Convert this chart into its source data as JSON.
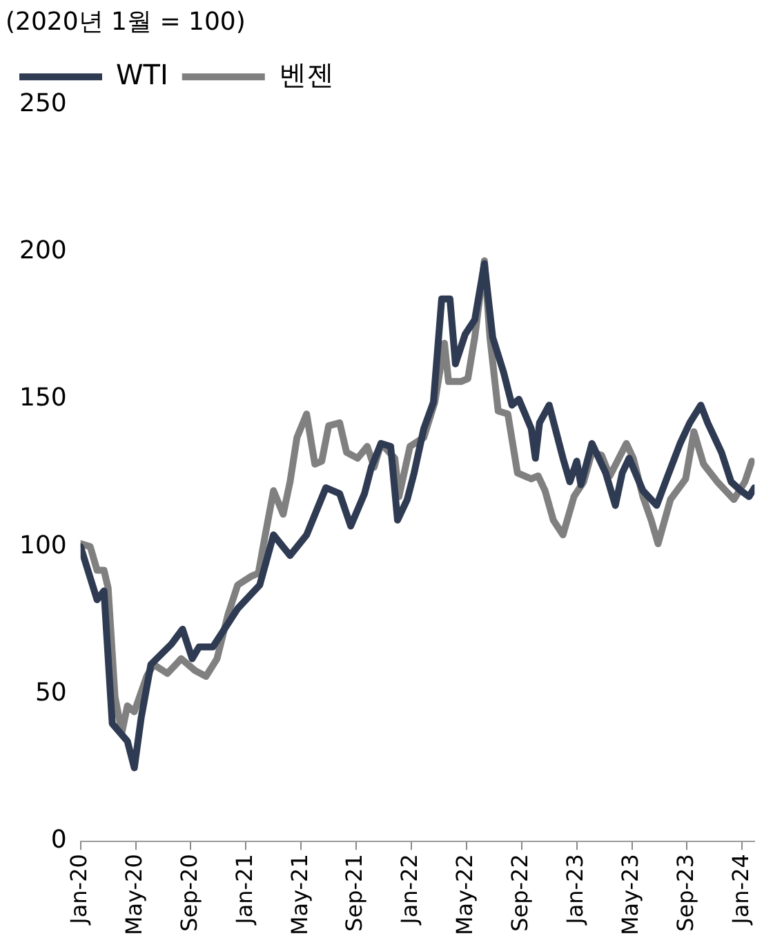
{
  "chart_data": {
    "type": "line",
    "title": "(2020년 1월 = 100)",
    "legend": "top left",
    "grid": false,
    "marker": "none",
    "line_style": "solid",
    "xlim": [
      "2020-01-01",
      "2024-01-28"
    ],
    "xticks": [
      {
        "value": "2020-01-01",
        "label": "Jan-20"
      },
      {
        "value": "2020-05-01",
        "label": "May-20"
      },
      {
        "value": "2020-09-01",
        "label": "Sep-20"
      },
      {
        "value": "2021-01-01",
        "label": "Jan-21"
      },
      {
        "value": "2021-05-01",
        "label": "May-21"
      },
      {
        "value": "2021-09-01",
        "label": "Sep-21"
      },
      {
        "value": "2022-01-01",
        "label": "Jan-22"
      },
      {
        "value": "2022-05-01",
        "label": "May-22"
      },
      {
        "value": "2022-09-01",
        "label": "Sep-22"
      },
      {
        "value": "2023-01-01",
        "label": "Jan-23"
      },
      {
        "value": "2023-05-01",
        "label": "May-23"
      },
      {
        "value": "2023-09-01",
        "label": "Sep-23"
      },
      {
        "value": "2024-01-01",
        "label": "Jan-24"
      }
    ],
    "ylim": [
      0,
      250
    ],
    "yticks": [
      0,
      50,
      100,
      150,
      200,
      250
    ],
    "series": [
      {
        "name": "WTI",
        "color": "#2f3b52",
        "x": [
          "2020-01-01",
          "2020-02-07",
          "2020-02-22",
          "2020-03-10",
          "2020-04-13",
          "2020-04-28",
          "2020-05-13",
          "2020-06-04",
          "2020-07-19",
          "2020-08-13",
          "2020-09-04",
          "2020-09-19",
          "2020-10-19",
          "2020-12-13",
          "2021-01-13",
          "2021-02-01",
          "2021-03-01",
          "2021-04-07",
          "2021-05-13",
          "2021-06-25",
          "2021-07-25",
          "2021-08-19",
          "2021-09-19",
          "2021-10-04",
          "2021-10-25",
          "2021-11-16",
          "2021-12-01",
          "2021-12-22",
          "2022-01-07",
          "2022-01-28",
          "2022-02-19",
          "2022-03-07",
          "2022-03-25",
          "2022-04-07",
          "2022-04-28",
          "2022-05-19",
          "2022-06-10",
          "2022-06-28",
          "2022-07-22",
          "2022-08-10",
          "2022-08-25",
          "2022-09-22",
          "2022-10-01",
          "2022-10-10",
          "2022-11-01",
          "2022-12-01",
          "2022-12-16",
          "2023-01-01",
          "2023-01-10",
          "2023-02-04",
          "2023-03-04",
          "2023-03-25",
          "2023-04-10",
          "2023-04-25",
          "2023-05-25",
          "2023-06-25",
          "2023-07-19",
          "2023-08-16",
          "2023-09-07",
          "2023-10-01",
          "2023-10-16",
          "2023-11-16",
          "2023-12-07",
          "2023-12-28",
          "2024-01-16",
          "2024-01-28"
        ],
        "values": [
          100,
          82,
          85,
          40,
          34,
          25,
          42,
          60,
          67,
          72,
          62,
          66,
          66,
          79,
          84,
          87,
          104,
          97,
          104,
          120,
          118,
          107,
          118,
          127,
          135,
          134,
          109,
          116,
          125,
          140,
          149,
          184,
          184,
          162,
          172,
          177,
          196,
          171,
          159,
          148,
          150,
          140,
          130,
          142,
          148,
          130,
          122,
          129,
          121,
          135,
          125,
          114,
          125,
          130,
          119,
          114,
          124,
          135,
          142,
          148,
          142,
          132,
          122,
          119,
          117,
          120
        ]
      },
      {
        "name": "벤젠",
        "color": "#808080",
        "x": [
          "2020-01-01",
          "2020-01-22",
          "2020-02-07",
          "2020-02-22",
          "2020-03-01",
          "2020-03-16",
          "2020-04-01",
          "2020-04-13",
          "2020-04-28",
          "2020-05-25",
          "2020-06-10",
          "2020-07-10",
          "2020-08-10",
          "2020-09-10",
          "2020-10-04",
          "2020-10-28",
          "2020-11-22",
          "2020-12-13",
          "2021-01-13",
          "2021-01-28",
          "2021-02-13",
          "2021-03-01",
          "2021-03-22",
          "2021-04-07",
          "2021-04-22",
          "2021-05-13",
          "2021-06-01",
          "2021-06-16",
          "2021-07-01",
          "2021-07-25",
          "2021-08-10",
          "2021-09-04",
          "2021-09-25",
          "2021-10-10",
          "2021-10-25",
          "2021-11-25",
          "2021-12-04",
          "2021-12-28",
          "2022-01-28",
          "2022-02-22",
          "2022-03-13",
          "2022-03-22",
          "2022-04-19",
          "2022-05-04",
          "2022-05-19",
          "2022-06-10",
          "2022-06-22",
          "2022-07-10",
          "2022-08-01",
          "2022-08-22",
          "2022-09-22",
          "2022-10-07",
          "2022-10-22",
          "2022-11-10",
          "2022-12-01",
          "2022-12-25",
          "2023-01-16",
          "2023-02-04",
          "2023-02-25",
          "2023-03-13",
          "2023-04-19",
          "2023-05-04",
          "2023-05-25",
          "2023-06-13",
          "2023-06-28",
          "2023-07-25",
          "2023-08-28",
          "2023-09-16",
          "2023-10-07",
          "2023-11-07",
          "2023-12-13",
          "2024-01-07",
          "2024-01-22"
        ],
        "values": [
          101,
          100,
          92,
          92,
          86,
          49,
          37,
          46,
          44,
          56,
          60,
          57,
          62,
          58,
          56,
          62,
          77,
          87,
          90,
          91,
          104,
          119,
          111,
          122,
          137,
          145,
          128,
          129,
          141,
          142,
          132,
          130,
          134,
          127,
          135,
          130,
          117,
          134,
          137,
          149,
          169,
          156,
          156,
          157,
          171,
          197,
          171,
          146,
          145,
          125,
          123,
          124,
          119,
          109,
          104,
          117,
          122,
          132,
          131,
          124,
          135,
          130,
          117,
          109,
          101,
          116,
          123,
          139,
          128,
          122,
          116,
          122,
          129
        ]
      }
    ]
  }
}
